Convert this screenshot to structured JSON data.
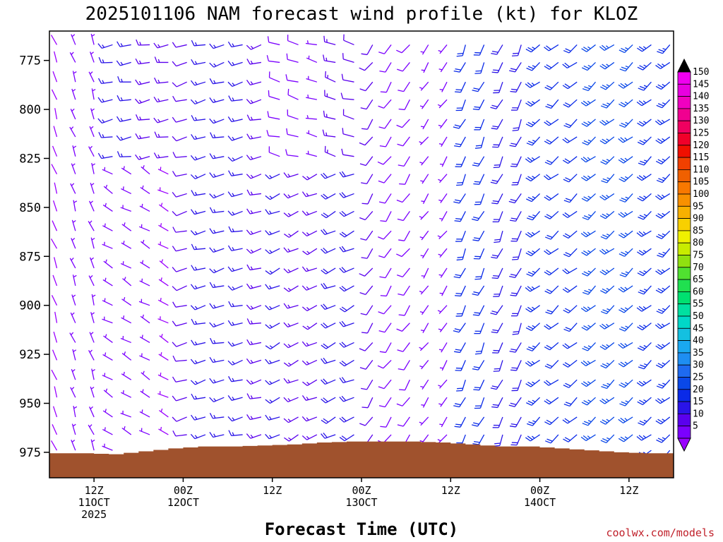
{
  "chart_data": {
    "type": "wind_barb_profile",
    "title": "2025101106 NAM forecast wind profile (kt) for KLOZ",
    "xlabel": "Forecast Time (UTC)",
    "ylabel": "",
    "credit": "coolwx.com/models",
    "y_axis": {
      "unit": "hPa",
      "reversed": true,
      "range": [
        988,
        760
      ],
      "ticks": [
        775,
        800,
        825,
        850,
        875,
        900,
        925,
        950,
        975
      ]
    },
    "x_axis": {
      "unit": "forecast hour",
      "range": [
        0,
        84
      ],
      "ticks": [
        {
          "hour": 6,
          "lines": [
            "12Z",
            "11OCT",
            "2025"
          ]
        },
        {
          "hour": 18,
          "lines": [
            "00Z",
            "12OCT"
          ]
        },
        {
          "hour": 30,
          "lines": [
            "12Z"
          ]
        },
        {
          "hour": 42,
          "lines": [
            "00Z",
            "13OCT"
          ]
        },
        {
          "hour": 54,
          "lines": [
            "12Z"
          ]
        },
        {
          "hour": 66,
          "lines": [
            "00Z",
            "14OCT"
          ]
        },
        {
          "hour": 78,
          "lines": [
            "12Z"
          ]
        }
      ]
    },
    "levels_hpa": [
      767,
      776,
      786,
      795,
      805,
      814,
      824,
      833,
      843,
      852,
      862,
      871,
      881,
      890,
      900,
      909,
      919,
      928,
      938,
      947,
      957,
      966,
      974
    ],
    "times_hours": [
      1,
      3.5,
      6,
      8.5,
      11,
      13.5,
      16,
      18.5,
      21,
      23.5,
      26,
      28.5,
      31,
      33.5,
      36,
      38.5,
      41,
      43.5,
      46,
      48.5,
      51,
      53.5,
      56,
      58.5,
      61,
      63.5,
      66,
      68.5,
      71,
      73.5,
      76,
      78.5,
      81,
      83.5
    ],
    "wind_model": {
      "description": "Approximate speeds (kt) and from-directions (deg) read off the barbs",
      "speed_zones": [
        {
          "hours": [
            0,
            8
          ],
          "pressure": [
            760,
            975
          ],
          "speed": 4,
          "direction": 340
        },
        {
          "hours": [
            8,
            17
          ],
          "pressure": [
            760,
            830
          ],
          "speed": 15,
          "direction": 260
        },
        {
          "hours": [
            8,
            17
          ],
          "pressure": [
            830,
            975
          ],
          "speed": 6,
          "direction": 300
        },
        {
          "hours": [
            17,
            30
          ],
          "pressure": [
            760,
            975
          ],
          "speed": 14,
          "direction": 255
        },
        {
          "hours": [
            30,
            42
          ],
          "pressure": [
            760,
            830
          ],
          "speed": 10,
          "direction": 285
        },
        {
          "hours": [
            30,
            42
          ],
          "pressure": [
            830,
            975
          ],
          "speed": 16,
          "direction": 245
        },
        {
          "hours": [
            42,
            54
          ],
          "pressure": [
            760,
            975
          ],
          "speed": 9,
          "direction": 215
        },
        {
          "hours": [
            54,
            66
          ],
          "pressure": [
            760,
            975
          ],
          "speed": 18,
          "direction": 205
        },
        {
          "hours": [
            66,
            84
          ],
          "pressure": [
            760,
            975
          ],
          "speed": 24,
          "direction": 230
        }
      ]
    },
    "terrain": {
      "description": "Surface pressure (hPa) where terrain hides levels",
      "hours": [
        0,
        4,
        8,
        12,
        16,
        20,
        24,
        28,
        32,
        36,
        40,
        44,
        48,
        52,
        56,
        60,
        64,
        68,
        72,
        76,
        80,
        84
      ],
      "pressure": [
        975.5,
        975.5,
        976,
        974.5,
        973,
        972,
        972,
        971.5,
        971,
        970,
        969.5,
        969.5,
        969.5,
        970,
        971,
        972,
        972,
        973,
        974,
        975,
        975.5,
        975.5
      ]
    },
    "colorbar": {
      "unit": "kt",
      "labels": [
        5,
        10,
        15,
        20,
        25,
        30,
        35,
        40,
        45,
        50,
        55,
        60,
        65,
        70,
        75,
        80,
        85,
        90,
        95,
        100,
        105,
        110,
        115,
        120,
        125,
        130,
        135,
        140,
        145,
        150
      ],
      "colors": [
        "#7b00ff",
        "#5a00ee",
        "#2a14e8",
        "#0a2ae8",
        "#0a48e8",
        "#1e6af0",
        "#1e8ef2",
        "#1aa8f0",
        "#14c0e0",
        "#00d8c8",
        "#00e0a0",
        "#00e070",
        "#20e050",
        "#50e030",
        "#90e010",
        "#c8ec00",
        "#f0f000",
        "#f8d000",
        "#f8b000",
        "#f89000",
        "#f87800",
        "#f06000",
        "#f04000",
        "#f01000",
        "#f0002a",
        "#f00060",
        "#f00090",
        "#f000c0",
        "#e800e0",
        "#f000f0"
      ],
      "over_color": "#000000",
      "under_color": "#9a00ff"
    },
    "colors": {
      "terrain": "#a0522d",
      "axis": "#000000"
    }
  }
}
